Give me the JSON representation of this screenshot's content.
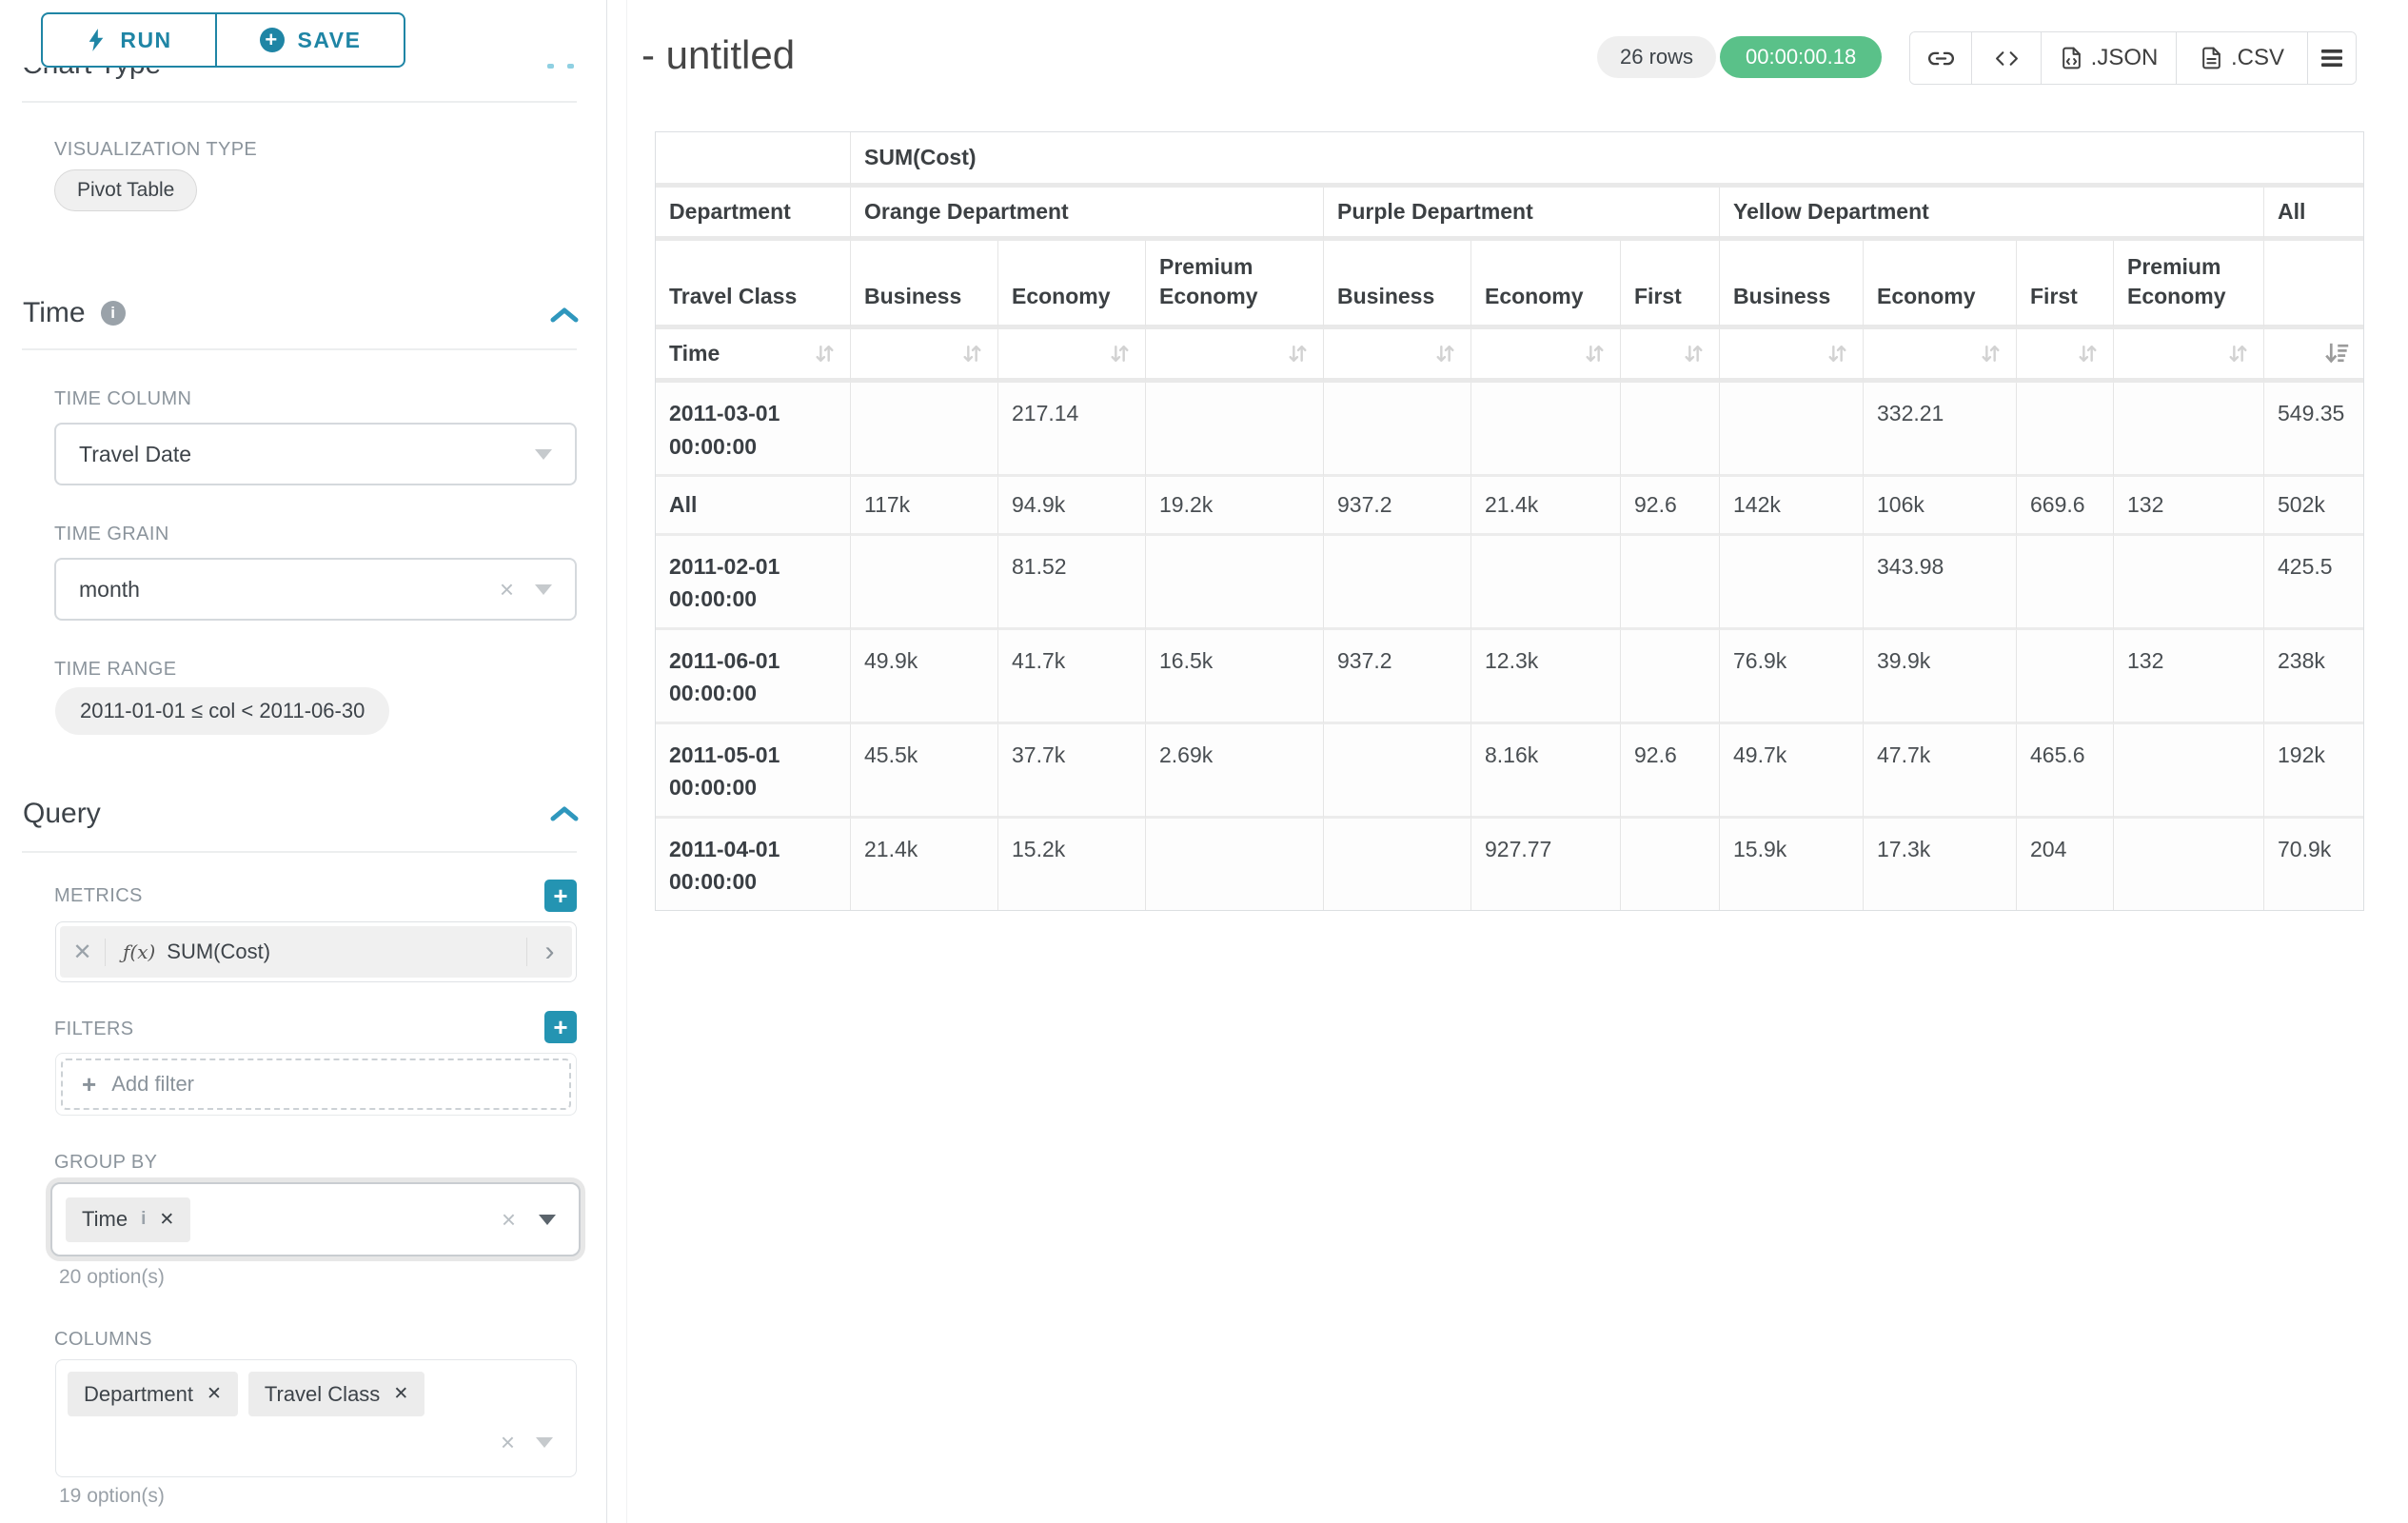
{
  "colors": {
    "accent": "#20a7c9",
    "button_teal": "#1f85a5",
    "success_green": "#5ac189"
  },
  "icons": {
    "clear": "×",
    "remove": "✕",
    "chevron_right": "›",
    "plus": "+",
    "info": "i",
    "fn": "ƒ(x)",
    "save_plus": "+"
  },
  "toolbar": {
    "run_label": "RUN",
    "save_label": "SAVE",
    "section_heading": "Chart Type"
  },
  "sidebar": {
    "visualization": {
      "label": "VISUALIZATION TYPE",
      "value": "Pivot Table"
    },
    "time": {
      "title": "Time",
      "time_column": {
        "label": "TIME COLUMN",
        "value": "Travel Date"
      },
      "time_grain": {
        "label": "TIME GRAIN",
        "value": "month"
      },
      "time_range": {
        "label": "TIME RANGE",
        "value": "2011-01-01 ≤ col < 2011-06-30"
      }
    },
    "query": {
      "title": "Query",
      "metrics": {
        "label": "METRICS",
        "items": [
          {
            "name": "SUM(Cost)"
          }
        ]
      },
      "filters": {
        "label": "FILTERS",
        "placeholder": "Add filter"
      },
      "group_by": {
        "label": "GROUP BY",
        "selected": [
          "Time"
        ],
        "helper": "20 option(s)"
      },
      "columns": {
        "label": "COLUMNS",
        "selected": [
          "Department",
          "Travel Class"
        ],
        "helper": "19 option(s)"
      }
    }
  },
  "header": {
    "title": "- untitled",
    "row_count": "26 rows",
    "timer": "00:00:00.18",
    "export_json_label": ".JSON",
    "export_csv_label": ".CSV"
  },
  "chart_data": {
    "type": "table",
    "title": "SUM(Cost) pivot table",
    "metric": "SUM(Cost)",
    "row_dimension_label": "Time",
    "col_dimension_labels": [
      "Department",
      "Travel Class"
    ],
    "column_groups": [
      {
        "department": "Orange Department",
        "travel_classes": [
          "Business",
          "Economy",
          "Premium Economy"
        ]
      },
      {
        "department": "Purple Department",
        "travel_classes": [
          "Business",
          "Economy",
          "First"
        ]
      },
      {
        "department": "Yellow Department",
        "travel_classes": [
          "Business",
          "Economy",
          "First",
          "Premium Economy"
        ]
      },
      {
        "department": "All",
        "travel_classes": [
          ""
        ]
      }
    ],
    "rows": [
      {
        "label": "2011-03-01 00:00:00",
        "values": [
          "",
          "217.14",
          "",
          "",
          "",
          "",
          "",
          "332.21",
          "",
          "",
          "549.35"
        ]
      },
      {
        "label": "All",
        "values": [
          "117k",
          "94.9k",
          "19.2k",
          "937.2",
          "21.4k",
          "92.6",
          "142k",
          "106k",
          "669.6",
          "132",
          "502k"
        ]
      },
      {
        "label": "2011-02-01 00:00:00",
        "values": [
          "",
          "81.52",
          "",
          "",
          "",
          "",
          "",
          "343.98",
          "",
          "",
          "425.5"
        ]
      },
      {
        "label": "2011-06-01 00:00:00",
        "values": [
          "49.9k",
          "41.7k",
          "16.5k",
          "937.2",
          "12.3k",
          "",
          "76.9k",
          "39.9k",
          "",
          "132",
          "238k"
        ]
      },
      {
        "label": "2011-05-01 00:00:00",
        "values": [
          "45.5k",
          "37.7k",
          "2.69k",
          "",
          "8.16k",
          "92.6",
          "49.7k",
          "47.7k",
          "465.6",
          "",
          "192k"
        ]
      },
      {
        "label": "2011-04-01 00:00:00",
        "values": [
          "21.4k",
          "15.2k",
          "",
          "",
          "927.77",
          "",
          "15.9k",
          "17.3k",
          "204",
          "",
          "70.9k"
        ]
      }
    ],
    "sorted_column": "All",
    "sort_direction": "descending"
  }
}
